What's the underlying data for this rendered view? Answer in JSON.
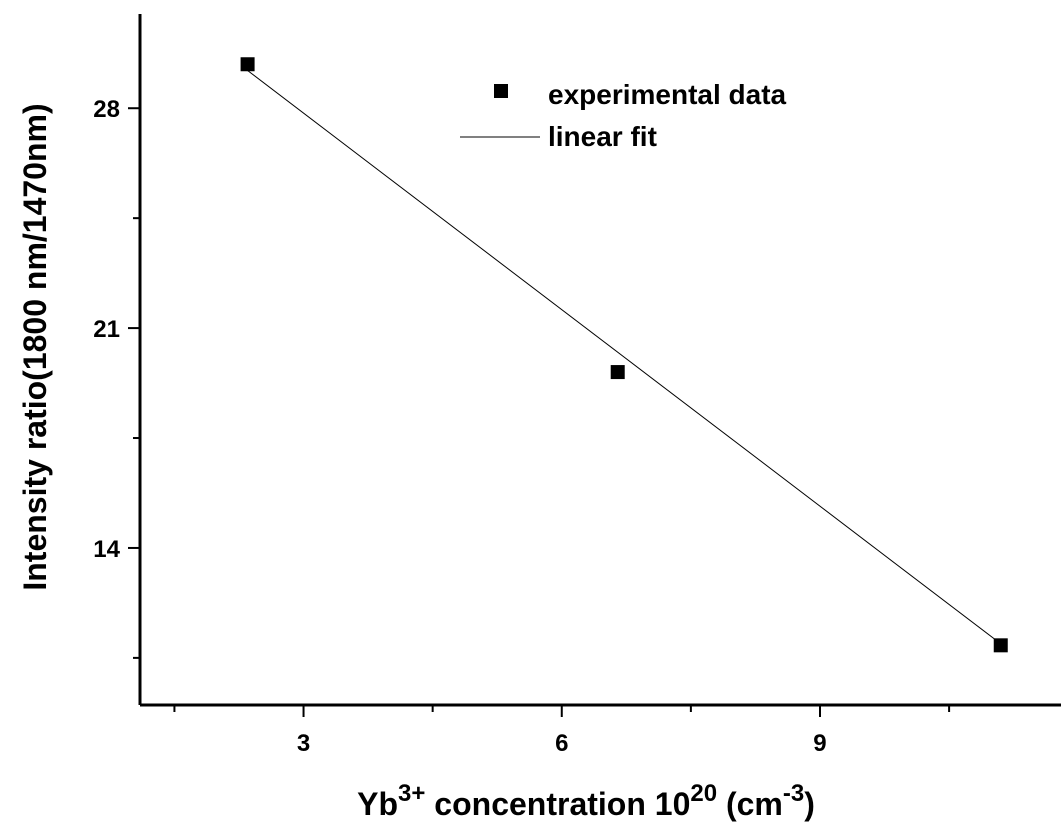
{
  "chart_data": {
    "type": "scatter",
    "xlabel": {
      "base": "Yb",
      "sup1": "3+",
      "mid": " concentration 10",
      "sup2": "20",
      "tail": " (cm",
      "sup3": "-3",
      "end": ")"
    },
    "ylabel": "Intensity ratio(1800 nm/1470nm)",
    "xlim": [
      1.1,
      11.8
    ],
    "ylim": [
      9.0,
      31.0
    ],
    "xticks": [
      3,
      6,
      9
    ],
    "yticks": [
      14,
      21,
      28
    ],
    "legend": {
      "position": "top-right",
      "entries": [
        "experimental data",
        "linear fit"
      ]
    },
    "series": [
      {
        "name": "experimental data",
        "style": "square-marker",
        "color": "#000000",
        "x": [
          2.35,
          6.65,
          11.1
        ],
        "y": [
          29.4,
          19.6,
          10.9
        ]
      },
      {
        "name": "linear fit",
        "style": "line",
        "color": "#000000",
        "x": [
          2.35,
          11.1
        ],
        "y": [
          29.2,
          10.95
        ]
      }
    ]
  }
}
